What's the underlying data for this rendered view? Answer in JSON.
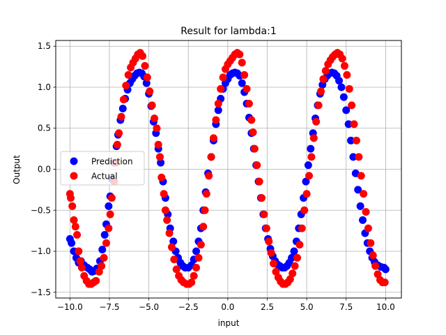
{
  "chart_data": {
    "type": "scatter",
    "title": "Result for lambda:1",
    "xlabel": "input",
    "ylabel": "Output",
    "xlim": [
      -10.9,
      11.0
    ],
    "ylim": [
      -1.57,
      1.57
    ],
    "xticks": [
      -10.0,
      -7.5,
      -5.0,
      -2.5,
      0.0,
      2.5,
      5.0,
      7.5,
      10.0
    ],
    "xtick_labels": [
      "−10.0",
      "−7.5",
      "−5.0",
      "−2.5",
      "0.0",
      "2.5",
      "5.0",
      "7.5",
      "10.0"
    ],
    "yticks": [
      -1.5,
      -1.0,
      -0.5,
      0.0,
      0.5,
      1.0,
      1.5
    ],
    "ytick_labels": [
      "−1.5",
      "−1.0",
      "−0.5",
      "0.0",
      "0.5",
      "1.0",
      "1.5"
    ],
    "grid": true,
    "legend": "center-left",
    "series": [
      {
        "name": "Prediction",
        "color": "#0000ff",
        "points": [
          [
            -10.0,
            -0.85
          ],
          [
            -9.9,
            -0.9
          ],
          [
            -9.75,
            -1.0
          ],
          [
            -9.6,
            -1.08
          ],
          [
            -9.45,
            -1.14
          ],
          [
            -9.3,
            -1.12
          ],
          [
            -9.1,
            -1.17
          ],
          [
            -8.9,
            -1.2
          ],
          [
            -8.75,
            -1.22
          ],
          [
            -8.6,
            -1.25
          ],
          [
            -8.45,
            -1.24
          ],
          [
            -8.3,
            -1.21
          ],
          [
            -8.1,
            -1.12
          ],
          [
            -7.95,
            -0.98
          ],
          [
            -7.8,
            -0.8
          ],
          [
            -7.7,
            -0.67
          ],
          [
            -7.55,
            -0.45
          ],
          [
            -7.45,
            -0.33
          ],
          [
            -7.35,
            -0.12
          ],
          [
            -7.2,
            0.08
          ],
          [
            -7.05,
            0.28
          ],
          [
            -6.95,
            0.42
          ],
          [
            -6.8,
            0.6
          ],
          [
            -6.65,
            0.74
          ],
          [
            -6.5,
            0.86
          ],
          [
            -6.35,
            0.97
          ],
          [
            -6.2,
            1.05
          ],
          [
            -6.05,
            1.1
          ],
          [
            -5.9,
            1.14
          ],
          [
            -5.75,
            1.17
          ],
          [
            -5.6,
            1.18
          ],
          [
            -5.45,
            1.17
          ],
          [
            -5.3,
            1.13
          ],
          [
            -5.15,
            1.05
          ],
          [
            -5.0,
            0.92
          ],
          [
            -4.85,
            0.77
          ],
          [
            -4.7,
            0.58
          ],
          [
            -4.55,
            0.44
          ],
          [
            -4.4,
            0.25
          ],
          [
            -4.25,
            0.08
          ],
          [
            -4.1,
            -0.15
          ],
          [
            -3.95,
            -0.35
          ],
          [
            -3.8,
            -0.55
          ],
          [
            -3.65,
            -0.72
          ],
          [
            -3.45,
            -0.88
          ],
          [
            -3.3,
            -1.0
          ],
          [
            -3.15,
            -1.08
          ],
          [
            -3.0,
            -1.14
          ],
          [
            -2.85,
            -1.18
          ],
          [
            -2.7,
            -1.2
          ],
          [
            -2.5,
            -1.2
          ],
          [
            -2.3,
            -1.17
          ],
          [
            -2.15,
            -1.1
          ],
          [
            -2.0,
            -1.0
          ],
          [
            -1.85,
            -0.88
          ],
          [
            -1.7,
            -0.72
          ],
          [
            -1.55,
            -0.5
          ],
          [
            -1.4,
            -0.28
          ],
          [
            -1.25,
            -0.05
          ],
          [
            -1.05,
            0.15
          ],
          [
            -0.9,
            0.35
          ],
          [
            -0.75,
            0.55
          ],
          [
            -0.6,
            0.72
          ],
          [
            -0.45,
            0.86
          ],
          [
            -0.3,
            0.98
          ],
          [
            -0.15,
            1.05
          ],
          [
            0.0,
            1.1
          ],
          [
            0.15,
            1.15
          ],
          [
            0.3,
            1.17
          ],
          [
            0.45,
            1.18
          ],
          [
            0.6,
            1.17
          ],
          [
            0.75,
            1.14
          ],
          [
            0.9,
            1.05
          ],
          [
            1.05,
            0.94
          ],
          [
            1.2,
            0.8
          ],
          [
            1.35,
            0.63
          ],
          [
            1.5,
            0.44
          ],
          [
            1.65,
            0.25
          ],
          [
            1.8,
            0.05
          ],
          [
            1.95,
            -0.15
          ],
          [
            2.1,
            -0.35
          ],
          [
            2.25,
            -0.55
          ],
          [
            2.4,
            -0.72
          ],
          [
            2.55,
            -0.85
          ],
          [
            2.7,
            -0.97
          ],
          [
            2.85,
            -1.06
          ],
          [
            3.0,
            -1.12
          ],
          [
            3.15,
            -1.16
          ],
          [
            3.3,
            -1.18
          ],
          [
            3.45,
            -1.2
          ],
          [
            3.6,
            -1.2
          ],
          [
            3.75,
            -1.18
          ],
          [
            3.9,
            -1.14
          ],
          [
            4.05,
            -1.08
          ],
          [
            4.2,
            -1.0
          ],
          [
            4.35,
            -0.88
          ],
          [
            4.5,
            -0.72
          ],
          [
            4.65,
            -0.55
          ],
          [
            4.8,
            -0.35
          ],
          [
            4.95,
            -0.15
          ],
          [
            5.1,
            0.05
          ],
          [
            5.25,
            0.25
          ],
          [
            5.4,
            0.44
          ],
          [
            5.55,
            0.62
          ],
          [
            5.7,
            0.78
          ],
          [
            5.85,
            0.92
          ],
          [
            6.0,
            1.03
          ],
          [
            6.15,
            1.1
          ],
          [
            6.3,
            1.14
          ],
          [
            6.45,
            1.17
          ],
          [
            6.6,
            1.18
          ],
          [
            6.75,
            1.17
          ],
          [
            6.9,
            1.14
          ],
          [
            7.05,
            1.08
          ],
          [
            7.2,
            1.0
          ],
          [
            7.35,
            0.88
          ],
          [
            7.5,
            0.72
          ],
          [
            7.65,
            0.55
          ],
          [
            7.8,
            0.35
          ],
          [
            7.95,
            0.15
          ],
          [
            8.1,
            -0.05
          ],
          [
            8.25,
            -0.25
          ],
          [
            8.4,
            -0.45
          ],
          [
            8.55,
            -0.62
          ],
          [
            8.7,
            -0.78
          ],
          [
            8.85,
            -0.9
          ],
          [
            9.0,
            -1.0
          ],
          [
            9.15,
            -1.08
          ],
          [
            9.3,
            -1.13
          ],
          [
            9.5,
            -1.17
          ],
          [
            9.7,
            -1.19
          ],
          [
            9.9,
            -1.2
          ],
          [
            10.0,
            -1.22
          ]
        ]
      },
      {
        "name": "Actual",
        "color": "#ff0000",
        "points": [
          [
            -10.0,
            -0.3
          ],
          [
            -9.95,
            -0.35
          ],
          [
            -9.85,
            -0.45
          ],
          [
            -9.75,
            -0.62
          ],
          [
            -9.65,
            -0.7
          ],
          [
            -9.55,
            -0.8
          ],
          [
            -9.45,
            -1.0
          ],
          [
            -9.35,
            -1.12
          ],
          [
            -9.25,
            -1.2
          ],
          [
            -9.1,
            -1.3
          ],
          [
            -8.95,
            -1.36
          ],
          [
            -8.8,
            -1.4
          ],
          [
            -8.65,
            -1.4
          ],
          [
            -8.5,
            -1.38
          ],
          [
            -8.35,
            -1.36
          ],
          [
            -8.15,
            -1.25
          ],
          [
            -8.0,
            -1.18
          ],
          [
            -7.85,
            -1.08
          ],
          [
            -7.7,
            -0.9
          ],
          [
            -7.55,
            -0.72
          ],
          [
            -7.45,
            -0.55
          ],
          [
            -7.35,
            -0.35
          ],
          [
            -7.2,
            -0.15
          ],
          [
            -7.1,
            0.08
          ],
          [
            -7.0,
            0.3
          ],
          [
            -6.9,
            0.44
          ],
          [
            -6.75,
            0.64
          ],
          [
            -6.6,
            0.85
          ],
          [
            -6.45,
            1.02
          ],
          [
            -6.3,
            1.15
          ],
          [
            -6.15,
            1.24
          ],
          [
            -6.0,
            1.3
          ],
          [
            -5.85,
            1.35
          ],
          [
            -5.7,
            1.4
          ],
          [
            -5.55,
            1.42
          ],
          [
            -5.4,
            1.38
          ],
          [
            -5.25,
            1.26
          ],
          [
            -5.1,
            1.12
          ],
          [
            -4.95,
            0.95
          ],
          [
            -4.8,
            0.78
          ],
          [
            -4.65,
            0.62
          ],
          [
            -4.5,
            0.5
          ],
          [
            -4.4,
            0.3
          ],
          [
            -4.3,
            0.15
          ],
          [
            -4.2,
            -0.1
          ],
          [
            -4.05,
            -0.3
          ],
          [
            -3.95,
            -0.5
          ],
          [
            -3.85,
            -0.62
          ],
          [
            -3.7,
            -0.78
          ],
          [
            -3.55,
            -0.95
          ],
          [
            -3.4,
            -1.1
          ],
          [
            -3.25,
            -1.22
          ],
          [
            -3.1,
            -1.3
          ],
          [
            -2.95,
            -1.35
          ],
          [
            -2.8,
            -1.38
          ],
          [
            -2.6,
            -1.4
          ],
          [
            -2.45,
            -1.4
          ],
          [
            -2.3,
            -1.38
          ],
          [
            -2.15,
            -1.3
          ],
          [
            -2.0,
            -1.2
          ],
          [
            -1.85,
            -1.08
          ],
          [
            -1.7,
            -0.92
          ],
          [
            -1.55,
            -0.7
          ],
          [
            -1.45,
            -0.5
          ],
          [
            -1.35,
            -0.3
          ],
          [
            -1.2,
            -0.08
          ],
          [
            -1.05,
            0.15
          ],
          [
            -0.9,
            0.38
          ],
          [
            -0.75,
            0.6
          ],
          [
            -0.6,
            0.8
          ],
          [
            -0.45,
            0.98
          ],
          [
            -0.3,
            1.12
          ],
          [
            -0.15,
            1.22
          ],
          [
            0.0,
            1.28
          ],
          [
            0.15,
            1.32
          ],
          [
            0.3,
            1.36
          ],
          [
            0.45,
            1.4
          ],
          [
            0.6,
            1.42
          ],
          [
            0.75,
            1.4
          ],
          [
            0.9,
            1.3
          ],
          [
            1.05,
            1.15
          ],
          [
            1.2,
            0.98
          ],
          [
            1.35,
            0.8
          ],
          [
            1.5,
            0.6
          ],
          [
            1.6,
            0.45
          ],
          [
            1.7,
            0.25
          ],
          [
            1.85,
            0.05
          ],
          [
            2.0,
            -0.15
          ],
          [
            2.15,
            -0.35
          ],
          [
            2.3,
            -0.55
          ],
          [
            2.45,
            -0.72
          ],
          [
            2.6,
            -0.88
          ],
          [
            2.75,
            -1.02
          ],
          [
            2.9,
            -1.15
          ],
          [
            3.05,
            -1.25
          ],
          [
            3.2,
            -1.32
          ],
          [
            3.35,
            -1.37
          ],
          [
            3.5,
            -1.4
          ],
          [
            3.65,
            -1.4
          ],
          [
            3.8,
            -1.38
          ],
          [
            3.95,
            -1.34
          ],
          [
            4.1,
            -1.27
          ],
          [
            4.25,
            -1.18
          ],
          [
            4.4,
            -1.08
          ],
          [
            4.55,
            -0.92
          ],
          [
            4.7,
            -0.72
          ],
          [
            4.85,
            -0.5
          ],
          [
            5.0,
            -0.3
          ],
          [
            5.15,
            -0.08
          ],
          [
            5.3,
            0.15
          ],
          [
            5.45,
            0.38
          ],
          [
            5.6,
            0.58
          ],
          [
            5.75,
            0.78
          ],
          [
            5.9,
            0.95
          ],
          [
            6.05,
            1.1
          ],
          [
            6.2,
            1.2
          ],
          [
            6.35,
            1.28
          ],
          [
            6.5,
            1.33
          ],
          [
            6.65,
            1.37
          ],
          [
            6.8,
            1.4
          ],
          [
            6.95,
            1.42
          ],
          [
            7.1,
            1.4
          ],
          [
            7.25,
            1.35
          ],
          [
            7.4,
            1.26
          ],
          [
            7.55,
            1.15
          ],
          [
            7.7,
            0.98
          ],
          [
            7.85,
            0.78
          ],
          [
            8.0,
            0.55
          ],
          [
            8.15,
            0.35
          ],
          [
            8.3,
            0.15
          ],
          [
            8.45,
            -0.08
          ],
          [
            8.6,
            -0.3
          ],
          [
            8.75,
            -0.52
          ],
          [
            8.9,
            -0.72
          ],
          [
            9.05,
            -0.9
          ],
          [
            9.2,
            -1.05
          ],
          [
            9.35,
            -1.18
          ],
          [
            9.5,
            -1.28
          ],
          [
            9.65,
            -1.35
          ],
          [
            9.8,
            -1.38
          ],
          [
            9.95,
            -1.38
          ]
        ]
      }
    ]
  }
}
